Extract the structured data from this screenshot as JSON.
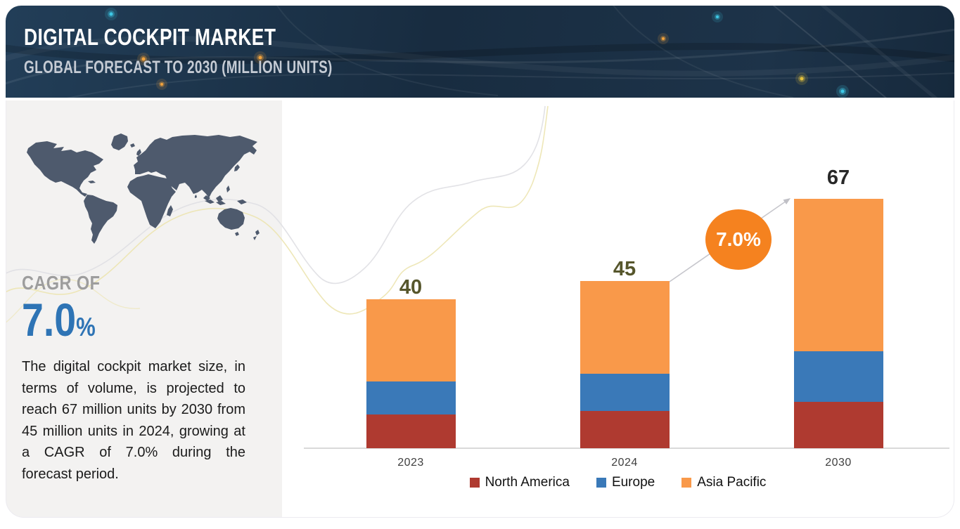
{
  "header": {
    "title": "DIGITAL COCKPIT MARKET",
    "subtitle": "GLOBAL FORECAST TO 2030 (MILLION UNITS)"
  },
  "sidebar": {
    "cagr_label": "CAGR OF",
    "cagr_value": "7.0",
    "cagr_unit": "%",
    "cagr_label_color": "#9D9D9D",
    "cagr_value_color": "#2E74B5",
    "description": "The digital cockpit market size, in terms of volume, is projected to reach 67 million units by 2030 from 45 million units in 2024, growing at a CAGR of 7.0% during the forecast period."
  },
  "chart_data": {
    "type": "bar",
    "stacked": true,
    "title": "Digital Cockpit Market, Global Forecast to 2030 (Million Units)",
    "categories": [
      "2023",
      "2024",
      "2030"
    ],
    "series": [
      {
        "name": "North America",
        "color": "#AF3A30",
        "values": [
          9,
          10,
          12.5
        ]
      },
      {
        "name": "Europe",
        "color": "#3A79B8",
        "values": [
          9,
          10,
          13.5
        ]
      },
      {
        "name": "Asia Pacific",
        "color": "#F9994A",
        "values": [
          22,
          25,
          41
        ]
      }
    ],
    "totals": [
      40,
      45,
      67
    ],
    "total_label_colors": [
      "#56562C",
      "#56562C",
      "#282828"
    ],
    "ylim": [
      0,
      70
    ],
    "grid": false,
    "legend_position": "bottom",
    "axis_color": "#D9D9D9",
    "tick_color": "#3F3F3F",
    "annotation": {
      "growth_label": "7.0%",
      "circle_color": "#F5821F",
      "arrow_color": "#C6C6CC"
    }
  }
}
